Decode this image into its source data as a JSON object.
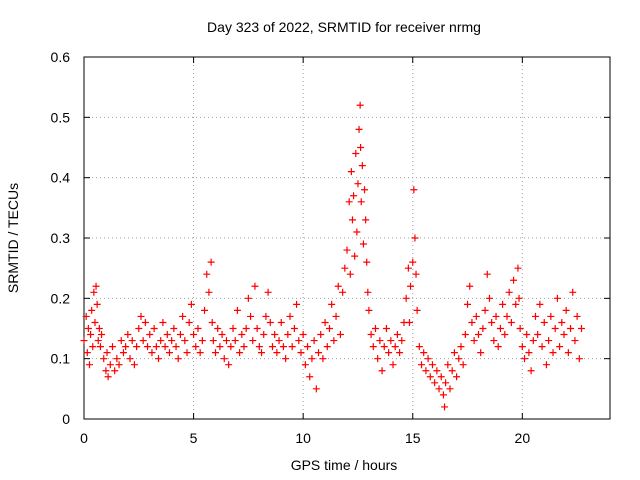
{
  "chart_data": {
    "type": "scatter",
    "title": "Day 323 of 2022, SRMTID for receiver nrmg",
    "xlabel": "GPS time / hours",
    "ylabel": "SRMTID / TECUs",
    "xlim": [
      0,
      24
    ],
    "ylim": [
      0,
      0.6
    ],
    "xticks": [
      0,
      5,
      10,
      15,
      20
    ],
    "xtick_labels": [
      "0",
      "5",
      "10",
      "15",
      "20"
    ],
    "yticks": [
      0,
      0.1,
      0.2,
      0.3,
      0.4,
      0.5,
      0.6
    ],
    "ytick_labels": [
      "0",
      "0.1",
      "0.2",
      "0.3",
      "0.4",
      "0.5",
      "0.6"
    ],
    "grid": true,
    "marker": "+",
    "series_color": "#ff0000",
    "series": [
      {
        "name": "SRMTID",
        "points": [
          [
            0.0,
            0.13
          ],
          [
            0.1,
            0.17
          ],
          [
            0.15,
            0.11
          ],
          [
            0.2,
            0.15
          ],
          [
            0.25,
            0.09
          ],
          [
            0.3,
            0.14
          ],
          [
            0.35,
            0.18
          ],
          [
            0.4,
            0.12
          ],
          [
            0.45,
            0.21
          ],
          [
            0.5,
            0.16
          ],
          [
            0.55,
            0.22
          ],
          [
            0.6,
            0.19
          ],
          [
            0.65,
            0.13
          ],
          [
            0.7,
            0.15
          ],
          [
            0.75,
            0.12
          ],
          [
            0.8,
            0.14
          ],
          [
            0.9,
            0.1
          ],
          [
            1.0,
            0.08
          ],
          [
            1.05,
            0.11
          ],
          [
            1.1,
            0.07
          ],
          [
            1.2,
            0.09
          ],
          [
            1.3,
            0.12
          ],
          [
            1.4,
            0.08
          ],
          [
            1.5,
            0.1
          ],
          [
            1.6,
            0.09
          ],
          [
            1.7,
            0.13
          ],
          [
            1.8,
            0.11
          ],
          [
            1.9,
            0.12
          ],
          [
            2.0,
            0.14
          ],
          [
            2.1,
            0.1
          ],
          [
            2.2,
            0.13
          ],
          [
            2.3,
            0.09
          ],
          [
            2.4,
            0.12
          ],
          [
            2.5,
            0.15
          ],
          [
            2.6,
            0.17
          ],
          [
            2.7,
            0.13
          ],
          [
            2.8,
            0.16
          ],
          [
            2.9,
            0.12
          ],
          [
            3.0,
            0.14
          ],
          [
            3.1,
            0.11
          ],
          [
            3.2,
            0.15
          ],
          [
            3.3,
            0.12
          ],
          [
            3.4,
            0.1
          ],
          [
            3.5,
            0.13
          ],
          [
            3.6,
            0.16
          ],
          [
            3.7,
            0.12
          ],
          [
            3.8,
            0.14
          ],
          [
            3.9,
            0.11
          ],
          [
            4.0,
            0.13
          ],
          [
            4.1,
            0.15
          ],
          [
            4.2,
            0.12
          ],
          [
            4.3,
            0.1
          ],
          [
            4.4,
            0.14
          ],
          [
            4.5,
            0.17
          ],
          [
            4.6,
            0.13
          ],
          [
            4.7,
            0.11
          ],
          [
            4.8,
            0.16
          ],
          [
            4.9,
            0.19
          ],
          [
            5.0,
            0.14
          ],
          [
            5.1,
            0.12
          ],
          [
            5.2,
            0.15
          ],
          [
            5.3,
            0.11
          ],
          [
            5.4,
            0.13
          ],
          [
            5.5,
            0.18
          ],
          [
            5.6,
            0.24
          ],
          [
            5.7,
            0.21
          ],
          [
            5.8,
            0.26
          ],
          [
            5.85,
            0.16
          ],
          [
            5.9,
            0.13
          ],
          [
            6.0,
            0.11
          ],
          [
            6.1,
            0.15
          ],
          [
            6.2,
            0.12
          ],
          [
            6.3,
            0.14
          ],
          [
            6.4,
            0.1
          ],
          [
            6.5,
            0.13
          ],
          [
            6.6,
            0.09
          ],
          [
            6.7,
            0.12
          ],
          [
            6.8,
            0.15
          ],
          [
            6.9,
            0.13
          ],
          [
            7.0,
            0.18
          ],
          [
            7.1,
            0.11
          ],
          [
            7.2,
            0.14
          ],
          [
            7.3,
            0.12
          ],
          [
            7.4,
            0.15
          ],
          [
            7.5,
            0.2
          ],
          [
            7.6,
            0.17
          ],
          [
            7.7,
            0.13
          ],
          [
            7.8,
            0.22
          ],
          [
            7.9,
            0.15
          ],
          [
            8.0,
            0.12
          ],
          [
            8.1,
            0.11
          ],
          [
            8.2,
            0.14
          ],
          [
            8.3,
            0.17
          ],
          [
            8.4,
            0.21
          ],
          [
            8.5,
            0.16
          ],
          [
            8.6,
            0.12
          ],
          [
            8.7,
            0.14
          ],
          [
            8.8,
            0.11
          ],
          [
            8.9,
            0.13
          ],
          [
            9.0,
            0.16
          ],
          [
            9.1,
            0.12
          ],
          [
            9.2,
            0.1
          ],
          [
            9.3,
            0.14
          ],
          [
            9.4,
            0.17
          ],
          [
            9.5,
            0.12
          ],
          [
            9.6,
            0.15
          ],
          [
            9.7,
            0.19
          ],
          [
            9.8,
            0.13
          ],
          [
            9.9,
            0.11
          ],
          [
            10.0,
            0.14
          ],
          [
            10.1,
            0.09
          ],
          [
            10.2,
            0.12
          ],
          [
            10.3,
            0.07
          ],
          [
            10.4,
            0.1
          ],
          [
            10.5,
            0.13
          ],
          [
            10.6,
            0.05
          ],
          [
            10.7,
            0.11
          ],
          [
            10.8,
            0.14
          ],
          [
            10.9,
            0.1
          ],
          [
            11.0,
            0.16
          ],
          [
            11.1,
            0.12
          ],
          [
            11.2,
            0.15
          ],
          [
            11.3,
            0.19
          ],
          [
            11.4,
            0.13
          ],
          [
            11.5,
            0.17
          ],
          [
            11.6,
            0.22
          ],
          [
            11.7,
            0.14
          ],
          [
            11.8,
            0.21
          ],
          [
            11.9,
            0.25
          ],
          [
            12.0,
            0.28
          ],
          [
            12.1,
            0.36
          ],
          [
            12.15,
            0.24
          ],
          [
            12.2,
            0.41
          ],
          [
            12.25,
            0.33
          ],
          [
            12.3,
            0.37
          ],
          [
            12.35,
            0.27
          ],
          [
            12.4,
            0.44
          ],
          [
            12.45,
            0.31
          ],
          [
            12.5,
            0.39
          ],
          [
            12.55,
            0.48
          ],
          [
            12.6,
            0.52
          ],
          [
            12.62,
            0.45
          ],
          [
            12.65,
            0.36
          ],
          [
            12.7,
            0.42
          ],
          [
            12.75,
            0.29
          ],
          [
            12.8,
            0.38
          ],
          [
            12.85,
            0.33
          ],
          [
            12.9,
            0.26
          ],
          [
            12.95,
            0.21
          ],
          [
            13.0,
            0.18
          ],
          [
            13.1,
            0.14
          ],
          [
            13.2,
            0.12
          ],
          [
            13.3,
            0.15
          ],
          [
            13.4,
            0.1
          ],
          [
            13.5,
            0.13
          ],
          [
            13.6,
            0.08
          ],
          [
            13.7,
            0.12
          ],
          [
            13.8,
            0.15
          ],
          [
            13.9,
            0.11
          ],
          [
            14.0,
            0.13
          ],
          [
            14.1,
            0.09
          ],
          [
            14.2,
            0.12
          ],
          [
            14.3,
            0.14
          ],
          [
            14.4,
            0.11
          ],
          [
            14.5,
            0.13
          ],
          [
            14.6,
            0.16
          ],
          [
            14.7,
            0.2
          ],
          [
            14.8,
            0.25
          ],
          [
            14.85,
            0.16
          ],
          [
            14.9,
            0.22
          ],
          [
            15.0,
            0.26
          ],
          [
            15.05,
            0.38
          ],
          [
            15.1,
            0.3
          ],
          [
            15.15,
            0.24
          ],
          [
            15.2,
            0.18
          ],
          [
            15.3,
            0.12
          ],
          [
            15.4,
            0.09
          ],
          [
            15.5,
            0.11
          ],
          [
            15.6,
            0.08
          ],
          [
            15.7,
            0.1
          ],
          [
            15.8,
            0.07
          ],
          [
            15.9,
            0.09
          ],
          [
            16.0,
            0.06
          ],
          [
            16.1,
            0.08
          ],
          [
            16.2,
            0.05
          ],
          [
            16.3,
            0.07
          ],
          [
            16.4,
            0.04
          ],
          [
            16.45,
            0.02
          ],
          [
            16.5,
            0.06
          ],
          [
            16.6,
            0.09
          ],
          [
            16.7,
            0.05
          ],
          [
            16.8,
            0.08
          ],
          [
            16.9,
            0.11
          ],
          [
            17.0,
            0.07
          ],
          [
            17.1,
            0.1
          ],
          [
            17.2,
            0.12
          ],
          [
            17.3,
            0.09
          ],
          [
            17.4,
            0.14
          ],
          [
            17.5,
            0.19
          ],
          [
            17.6,
            0.22
          ],
          [
            17.7,
            0.16
          ],
          [
            17.8,
            0.13
          ],
          [
            17.9,
            0.17
          ],
          [
            18.0,
            0.14
          ],
          [
            18.1,
            0.11
          ],
          [
            18.2,
            0.15
          ],
          [
            18.3,
            0.18
          ],
          [
            18.4,
            0.24
          ],
          [
            18.5,
            0.2
          ],
          [
            18.6,
            0.16
          ],
          [
            18.7,
            0.13
          ],
          [
            18.8,
            0.17
          ],
          [
            18.9,
            0.12
          ],
          [
            19.0,
            0.15
          ],
          [
            19.1,
            0.19
          ],
          [
            19.2,
            0.14
          ],
          [
            19.3,
            0.17
          ],
          [
            19.4,
            0.21
          ],
          [
            19.5,
            0.16
          ],
          [
            19.6,
            0.23
          ],
          [
            19.7,
            0.19
          ],
          [
            19.8,
            0.25
          ],
          [
            19.85,
            0.2
          ],
          [
            19.9,
            0.15
          ],
          [
            20.0,
            0.12
          ],
          [
            20.1,
            0.1
          ],
          [
            20.2,
            0.14
          ],
          [
            20.3,
            0.11
          ],
          [
            20.4,
            0.08
          ],
          [
            20.5,
            0.13
          ],
          [
            20.6,
            0.17
          ],
          [
            20.7,
            0.14
          ],
          [
            20.8,
            0.19
          ],
          [
            20.9,
            0.12
          ],
          [
            21.0,
            0.16
          ],
          [
            21.1,
            0.09
          ],
          [
            21.2,
            0.13
          ],
          [
            21.3,
            0.17
          ],
          [
            21.4,
            0.11
          ],
          [
            21.5,
            0.15
          ],
          [
            21.6,
            0.2
          ],
          [
            21.7,
            0.12
          ],
          [
            21.8,
            0.16
          ],
          [
            21.9,
            0.14
          ],
          [
            22.0,
            0.18
          ],
          [
            22.1,
            0.11
          ],
          [
            22.2,
            0.15
          ],
          [
            22.3,
            0.21
          ],
          [
            22.4,
            0.13
          ],
          [
            22.5,
            0.17
          ],
          [
            22.6,
            0.1
          ],
          [
            22.7,
            0.15
          ]
        ]
      }
    ]
  }
}
